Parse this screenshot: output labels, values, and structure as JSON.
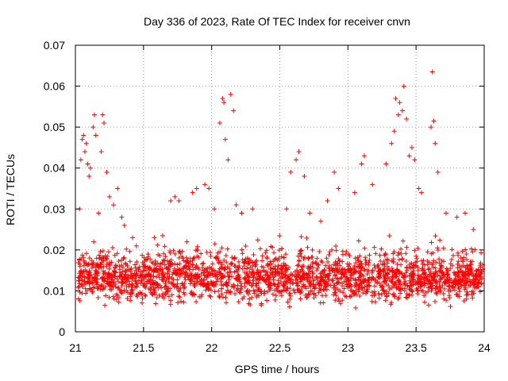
{
  "chart_data": {
    "type": "scatter",
    "title": "Day 336 of 2023, Rate Of TEC Index for receiver cnvn",
    "xlabel": "GPS time / hours",
    "ylabel": "ROTI / TECUs",
    "xlim": [
      21,
      24
    ],
    "ylim": [
      0,
      0.07
    ],
    "xticks": [
      21,
      21.5,
      22,
      22.5,
      23,
      23.5,
      24
    ],
    "xtick_labels": [
      "21",
      "21.5",
      "22",
      "22.5",
      "23",
      "23.5",
      "24"
    ],
    "yticks": [
      0,
      0.01,
      0.02,
      0.03,
      0.04,
      0.05,
      0.06,
      0.07
    ],
    "ytick_labels": [
      "0",
      "0.01",
      "0.02",
      "0.03",
      "0.04",
      "0.05",
      "0.06",
      "0.07"
    ],
    "grid": true,
    "marker": "+",
    "color": "#ff0000",
    "series": [
      {
        "name": "ROTI",
        "points": [
          [
            21.03,
            0.03
          ],
          [
            21.04,
            0.042
          ],
          [
            21.05,
            0.047
          ],
          [
            21.06,
            0.048
          ],
          [
            21.07,
            0.044
          ],
          [
            21.08,
            0.046
          ],
          [
            21.09,
            0.041
          ],
          [
            21.1,
            0.038
          ],
          [
            21.11,
            0.04
          ],
          [
            21.13,
            0.05
          ],
          [
            21.14,
            0.053
          ],
          [
            21.15,
            0.048
          ],
          [
            21.17,
            0.029
          ],
          [
            21.19,
            0.044
          ],
          [
            21.2,
            0.053
          ],
          [
            21.21,
            0.051
          ],
          [
            21.23,
            0.039
          ],
          [
            21.25,
            0.033
          ],
          [
            21.28,
            0.031
          ],
          [
            21.31,
            0.035
          ],
          [
            21.34,
            0.028
          ],
          [
            21.36,
            0.026
          ],
          [
            21.42,
            0.023
          ],
          [
            21.58,
            0.023
          ],
          [
            21.7,
            0.032
          ],
          [
            21.73,
            0.033
          ],
          [
            21.76,
            0.032
          ],
          [
            21.86,
            0.034
          ],
          [
            21.89,
            0.035
          ],
          [
            21.95,
            0.036
          ],
          [
            21.98,
            0.035
          ],
          [
            22.02,
            0.03
          ],
          [
            22.06,
            0.051
          ],
          [
            22.08,
            0.057
          ],
          [
            22.09,
            0.056
          ],
          [
            22.1,
            0.047
          ],
          [
            22.12,
            0.042
          ],
          [
            22.14,
            0.058
          ],
          [
            22.16,
            0.054
          ],
          [
            22.18,
            0.031
          ],
          [
            22.22,
            0.029
          ],
          [
            22.3,
            0.03
          ],
          [
            22.55,
            0.03
          ],
          [
            22.58,
            0.039
          ],
          [
            22.62,
            0.042
          ],
          [
            22.64,
            0.044
          ],
          [
            22.68,
            0.038
          ],
          [
            22.72,
            0.029
          ],
          [
            22.8,
            0.027
          ],
          [
            22.85,
            0.032
          ],
          [
            22.9,
            0.039
          ],
          [
            22.93,
            0.035
          ],
          [
            23.05,
            0.034
          ],
          [
            23.1,
            0.041
          ],
          [
            23.12,
            0.043
          ],
          [
            23.18,
            0.036
          ],
          [
            23.28,
            0.041
          ],
          [
            23.32,
            0.046
          ],
          [
            23.34,
            0.049
          ],
          [
            23.35,
            0.057
          ],
          [
            23.37,
            0.053
          ],
          [
            23.38,
            0.056
          ],
          [
            23.4,
            0.054
          ],
          [
            23.41,
            0.06
          ],
          [
            23.43,
            0.052
          ],
          [
            23.45,
            0.043
          ],
          [
            23.47,
            0.045
          ],
          [
            23.49,
            0.042
          ],
          [
            23.52,
            0.035
          ],
          [
            23.54,
            0.034
          ],
          [
            23.61,
            0.05
          ],
          [
            23.62,
            0.0635
          ],
          [
            23.63,
            0.0515
          ],
          [
            23.64,
            0.046
          ],
          [
            23.66,
            0.039
          ],
          [
            23.72,
            0.029
          ],
          [
            23.8,
            0.028
          ],
          [
            23.86,
            0.029
          ],
          [
            23.92,
            0.025
          ]
        ]
      }
    ]
  }
}
